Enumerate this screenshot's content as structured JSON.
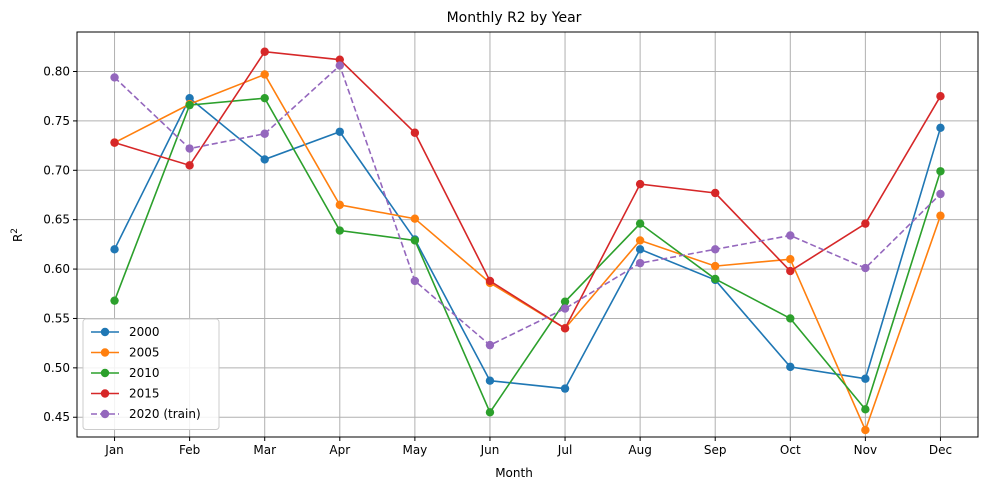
{
  "chart_data": {
    "type": "line",
    "title": "Monthly R2 by Year",
    "xlabel": "Month",
    "ylabel": "R²",
    "ylim": [
      0.43,
      0.84
    ],
    "yticks": [
      0.45,
      0.5,
      0.55,
      0.6,
      0.65,
      0.7,
      0.75,
      0.8
    ],
    "ytick_labels": [
      "0.45",
      "0.50",
      "0.55",
      "0.60",
      "0.65",
      "0.70",
      "0.75",
      "0.80"
    ],
    "grid": true,
    "legend_position": "lower-left",
    "categories": [
      "Jan",
      "Feb",
      "Mar",
      "Apr",
      "May",
      "Jun",
      "Jul",
      "Aug",
      "Sep",
      "Oct",
      "Nov",
      "Dec"
    ],
    "series": [
      {
        "name": "2000",
        "color": "#1f77b4",
        "dashed": false,
        "values": [
          0.62,
          0.773,
          0.711,
          0.739,
          0.63,
          0.487,
          0.479,
          0.62,
          0.589,
          0.501,
          0.489,
          0.743
        ]
      },
      {
        "name": "2005",
        "color": "#ff7f0e",
        "dashed": false,
        "values": [
          0.728,
          0.767,
          0.797,
          0.665,
          0.651,
          0.586,
          0.54,
          0.629,
          0.603,
          0.61,
          0.437,
          0.654
        ]
      },
      {
        "name": "2010",
        "color": "#2ca02c",
        "dashed": false,
        "values": [
          0.568,
          0.766,
          0.773,
          0.639,
          0.629,
          0.455,
          0.567,
          0.646,
          0.59,
          0.55,
          0.458,
          0.699
        ]
      },
      {
        "name": "2015",
        "color": "#d62728",
        "dashed": false,
        "values": [
          0.728,
          0.705,
          0.82,
          0.812,
          0.738,
          0.588,
          0.54,
          0.686,
          0.677,
          0.598,
          0.646,
          0.775
        ]
      },
      {
        "name": "2020 (train)",
        "color": "#9467bd",
        "dashed": true,
        "values": [
          0.794,
          0.722,
          0.737,
          0.806,
          0.588,
          0.523,
          0.56,
          0.606,
          0.62,
          0.634,
          0.601,
          0.676
        ]
      }
    ]
  }
}
